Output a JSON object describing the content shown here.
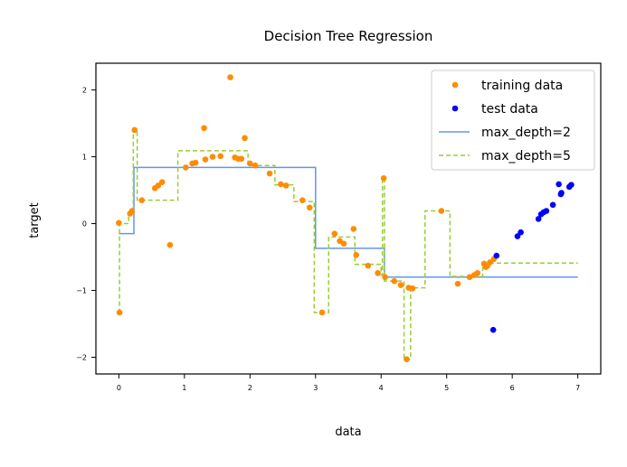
{
  "chart_data": {
    "type": "scatter",
    "title": "Decision Tree Regression",
    "xlabel": "data",
    "ylabel": "target",
    "xlim": [
      -0.35,
      7.35
    ],
    "ylim": [
      -2.25,
      2.4
    ],
    "xticks": [
      0,
      1,
      2,
      3,
      4,
      5,
      6,
      7
    ],
    "yticks": [
      2,
      1,
      0,
      -1,
      -2
    ],
    "grid": false,
    "legend_position": "top-right",
    "series": [
      {
        "name": "training data",
        "kind": "scatter",
        "color": "#ff8c00",
        "points": [
          [
            0.0,
            0.01
          ],
          [
            0.01,
            -1.33
          ],
          [
            0.17,
            0.15
          ],
          [
            0.2,
            0.19
          ],
          [
            0.24,
            1.4
          ],
          [
            0.35,
            0.35
          ],
          [
            0.55,
            0.53
          ],
          [
            0.6,
            0.57
          ],
          [
            0.66,
            0.62
          ],
          [
            0.78,
            -0.32
          ],
          [
            1.02,
            0.84
          ],
          [
            1.12,
            0.9
          ],
          [
            1.17,
            0.91
          ],
          [
            1.3,
            1.43
          ],
          [
            1.32,
            0.96
          ],
          [
            1.43,
            1.0
          ],
          [
            1.55,
            1.01
          ],
          [
            1.7,
            2.19
          ],
          [
            1.77,
            0.99
          ],
          [
            1.82,
            0.97
          ],
          [
            1.87,
            0.97
          ],
          [
            1.92,
            1.28
          ],
          [
            2.0,
            0.9
          ],
          [
            2.08,
            0.87
          ],
          [
            2.3,
            0.75
          ],
          [
            2.47,
            0.59
          ],
          [
            2.55,
            0.57
          ],
          [
            2.8,
            0.35
          ],
          [
            2.91,
            0.24
          ],
          [
            3.1,
            -1.33
          ],
          [
            3.29,
            -0.15
          ],
          [
            3.37,
            -0.26
          ],
          [
            3.43,
            -0.3
          ],
          [
            3.58,
            -0.08
          ],
          [
            3.62,
            -0.47
          ],
          [
            3.8,
            -0.63
          ],
          [
            3.95,
            -0.74
          ],
          [
            4.04,
            0.68
          ],
          [
            4.06,
            -0.8
          ],
          [
            4.2,
            -0.86
          ],
          [
            4.3,
            -0.92
          ],
          [
            4.39,
            -2.03
          ],
          [
            4.42,
            -0.96
          ],
          [
            4.48,
            -0.97
          ],
          [
            4.92,
            0.19
          ],
          [
            5.17,
            -0.9
          ],
          [
            5.35,
            -0.8
          ],
          [
            5.42,
            -0.77
          ],
          [
            5.47,
            -0.74
          ],
          [
            5.57,
            -0.6
          ],
          [
            5.6,
            -0.65
          ],
          [
            5.62,
            -0.63
          ],
          [
            5.66,
            -0.58
          ],
          [
            5.72,
            -0.53
          ]
        ]
      },
      {
        "name": "test data",
        "kind": "scatter",
        "color": "#0000ff",
        "points": [
          [
            5.71,
            -1.59
          ],
          [
            5.76,
            -0.48
          ],
          [
            6.08,
            -0.19
          ],
          [
            6.13,
            -0.13
          ],
          [
            6.4,
            0.07
          ],
          [
            6.44,
            0.14
          ],
          [
            6.48,
            0.17
          ],
          [
            6.52,
            0.19
          ],
          [
            6.62,
            0.28
          ],
          [
            6.71,
            0.59
          ],
          [
            6.74,
            0.44
          ],
          [
            6.75,
            0.46
          ],
          [
            6.87,
            0.55
          ],
          [
            6.9,
            0.58
          ]
        ]
      },
      {
        "name": "max_depth=2",
        "kind": "step",
        "color": "#6495ed",
        "dash": "solid",
        "points": [
          [
            0.0,
            -0.15
          ],
          [
            0.23,
            -0.15
          ],
          [
            0.23,
            0.84
          ],
          [
            3.0,
            0.84
          ],
          [
            3.0,
            -0.37
          ],
          [
            4.05,
            -0.37
          ],
          [
            4.05,
            -0.8
          ],
          [
            7.0,
            -0.8
          ]
        ]
      },
      {
        "name": "max_depth=5",
        "kind": "step",
        "color": "#9acd32",
        "dash": "dashed",
        "points": [
          [
            0.0,
            -1.33
          ],
          [
            0.01,
            -1.33
          ],
          [
            0.01,
            0.0
          ],
          [
            0.15,
            0.0
          ],
          [
            0.15,
            0.17
          ],
          [
            0.22,
            0.17
          ],
          [
            0.22,
            1.4
          ],
          [
            0.28,
            1.4
          ],
          [
            0.28,
            0.35
          ],
          [
            0.9,
            0.35
          ],
          [
            0.9,
            1.09
          ],
          [
            1.97,
            1.09
          ],
          [
            1.97,
            0.87
          ],
          [
            2.38,
            0.87
          ],
          [
            2.38,
            0.58
          ],
          [
            2.67,
            0.58
          ],
          [
            2.67,
            0.33
          ],
          [
            2.98,
            0.33
          ],
          [
            2.98,
            -1.33
          ],
          [
            3.2,
            -1.33
          ],
          [
            3.2,
            -0.2
          ],
          [
            3.6,
            -0.2
          ],
          [
            3.6,
            -0.61
          ],
          [
            4.0,
            -0.61
          ],
          [
            4.0,
            -0.77
          ],
          [
            4.02,
            -0.77
          ],
          [
            4.02,
            0.68
          ],
          [
            4.05,
            0.68
          ],
          [
            4.05,
            -0.86
          ],
          [
            4.35,
            -0.86
          ],
          [
            4.35,
            -2.03
          ],
          [
            4.45,
            -2.03
          ],
          [
            4.45,
            -0.96
          ],
          [
            4.67,
            -0.96
          ],
          [
            4.67,
            0.19
          ],
          [
            5.05,
            0.19
          ],
          [
            5.05,
            -0.79
          ],
          [
            5.55,
            -0.79
          ],
          [
            5.55,
            -0.59
          ],
          [
            7.0,
            -0.59
          ]
        ]
      }
    ]
  }
}
